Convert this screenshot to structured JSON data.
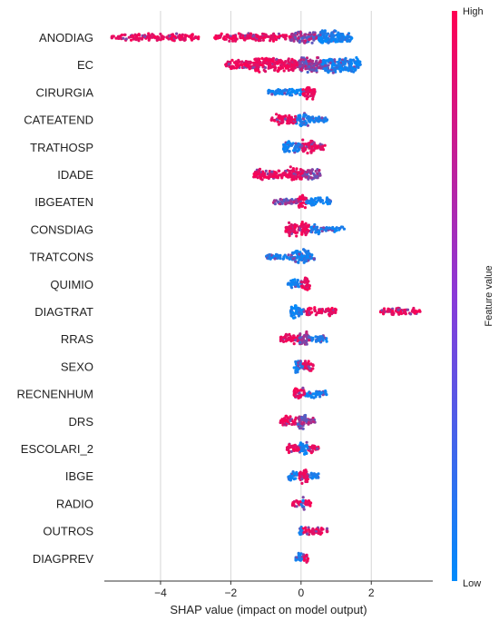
{
  "chart_data": {
    "type": "scatter",
    "subtype": "shap-beeswarm",
    "xlabel": "SHAP value (impact on model output)",
    "xlim": [
      -5.6,
      3.75
    ],
    "xticks": [
      {
        "value": -4,
        "label": "−4"
      },
      {
        "value": -2,
        "label": "−2"
      },
      {
        "value": 0,
        "label": "0"
      },
      {
        "value": 2,
        "label": "2"
      }
    ],
    "grid": "vertical",
    "colorbar": {
      "label": "Feature value",
      "high_label": "High",
      "low_label": "Low",
      "high_color": "#ff0052",
      "low_color": "#008bfb"
    },
    "features": [
      {
        "name": "ANODIAG",
        "segments": [
          [
            -5.4,
            -2.9,
            "high",
            1.0
          ],
          [
            -2.5,
            -0.3,
            "high",
            1.1
          ],
          [
            -0.3,
            0.5,
            "mix",
            2.0
          ],
          [
            0.5,
            1.2,
            "low",
            2.6
          ],
          [
            1.2,
            1.45,
            "low",
            1.2
          ]
        ]
      },
      {
        "name": "EC",
        "segments": [
          [
            -2.15,
            -1.5,
            "high",
            1.5
          ],
          [
            -1.5,
            -0.1,
            "high",
            2.4
          ],
          [
            -0.1,
            0.6,
            "mix",
            2.7
          ],
          [
            0.6,
            1.7,
            "low",
            3.0
          ]
        ]
      },
      {
        "name": "CIRURGIA",
        "segments": [
          [
            -0.95,
            0.05,
            "low",
            1.0
          ],
          [
            0.05,
            0.4,
            "high",
            2.2
          ]
        ]
      },
      {
        "name": "CATEATEND",
        "segments": [
          [
            -0.85,
            -0.15,
            "high",
            1.6
          ],
          [
            -0.15,
            0.25,
            "low",
            2.2
          ],
          [
            0.25,
            0.75,
            "low",
            1.0
          ]
        ]
      },
      {
        "name": "TRATHOSP",
        "segments": [
          [
            -0.5,
            0.0,
            "low",
            2.0
          ],
          [
            0.0,
            0.4,
            "high",
            2.4
          ],
          [
            0.4,
            0.7,
            "high",
            1.0
          ]
        ]
      },
      {
        "name": "IDADE",
        "segments": [
          [
            -1.35,
            -0.4,
            "high",
            1.6
          ],
          [
            -0.4,
            0.1,
            "high",
            2.4
          ],
          [
            0.1,
            0.55,
            "mix",
            2.0
          ]
        ]
      },
      {
        "name": "IBGEATEN",
        "segments": [
          [
            -0.8,
            -0.1,
            "mix",
            1.0
          ],
          [
            -0.1,
            0.15,
            "high",
            2.4
          ],
          [
            0.15,
            0.85,
            "low",
            1.2
          ]
        ]
      },
      {
        "name": "CONSDIAG",
        "segments": [
          [
            -0.45,
            0.25,
            "high",
            2.4
          ],
          [
            0.25,
            0.6,
            "low",
            1.4
          ],
          [
            0.6,
            1.25,
            "low",
            0.9
          ]
        ]
      },
      {
        "name": "TRATCONS",
        "segments": [
          [
            -1.0,
            -0.25,
            "low",
            1.0
          ],
          [
            -0.25,
            0.25,
            "low",
            2.6
          ],
          [
            0.25,
            0.4,
            "low",
            1.0
          ]
        ]
      },
      {
        "name": "QUIMIO",
        "segments": [
          [
            -0.4,
            0.0,
            "low",
            1.2
          ],
          [
            0.0,
            0.25,
            "high",
            2.4
          ]
        ]
      },
      {
        "name": "DIAGTRAT",
        "segments": [
          [
            -0.3,
            0.05,
            "low",
            2.0
          ],
          [
            0.05,
            1.0,
            "high",
            1.2
          ],
          [
            2.25,
            3.4,
            "high",
            1.0
          ]
        ]
      },
      {
        "name": "RRAS",
        "segments": [
          [
            -0.6,
            -0.05,
            "high",
            1.4
          ],
          [
            -0.05,
            0.25,
            "mix",
            2.4
          ],
          [
            0.25,
            0.75,
            "low",
            1.0
          ]
        ]
      },
      {
        "name": "SEXO",
        "segments": [
          [
            -0.2,
            0.05,
            "low",
            2.2
          ],
          [
            0.05,
            0.35,
            "high",
            2.0
          ]
        ]
      },
      {
        "name": "RECNENHUM",
        "segments": [
          [
            -0.2,
            0.1,
            "high",
            2.2
          ],
          [
            0.1,
            0.75,
            "low",
            1.2
          ]
        ]
      },
      {
        "name": "DRS",
        "segments": [
          [
            -0.6,
            -0.1,
            "high",
            1.4
          ],
          [
            -0.1,
            0.15,
            "mix",
            2.6
          ],
          [
            0.15,
            0.4,
            "mix",
            1.2
          ]
        ]
      },
      {
        "name": "ESCOLARI_2",
        "segments": [
          [
            -0.4,
            -0.05,
            "high",
            1.4
          ],
          [
            -0.05,
            0.2,
            "low",
            2.6
          ],
          [
            0.2,
            0.5,
            "high",
            1.2
          ]
        ]
      },
      {
        "name": "IBGE",
        "segments": [
          [
            -0.4,
            -0.05,
            "low",
            1.2
          ],
          [
            -0.05,
            0.2,
            "high",
            2.8
          ],
          [
            0.2,
            0.5,
            "low",
            1.0
          ]
        ]
      },
      {
        "name": "RADIO",
        "segments": [
          [
            -0.25,
            0.0,
            "high",
            1.0
          ],
          [
            0.0,
            0.1,
            "low",
            2.2
          ],
          [
            0.1,
            0.3,
            "high",
            1.0
          ]
        ]
      },
      {
        "name": "OUTROS",
        "segments": [
          [
            -0.05,
            0.05,
            "low",
            1.8
          ],
          [
            0.05,
            0.75,
            "high",
            1.1
          ]
        ]
      },
      {
        "name": "DIAGPREV",
        "segments": [
          [
            -0.15,
            0.05,
            "low",
            2.2
          ],
          [
            0.05,
            0.2,
            "high",
            1.6
          ]
        ]
      }
    ]
  }
}
